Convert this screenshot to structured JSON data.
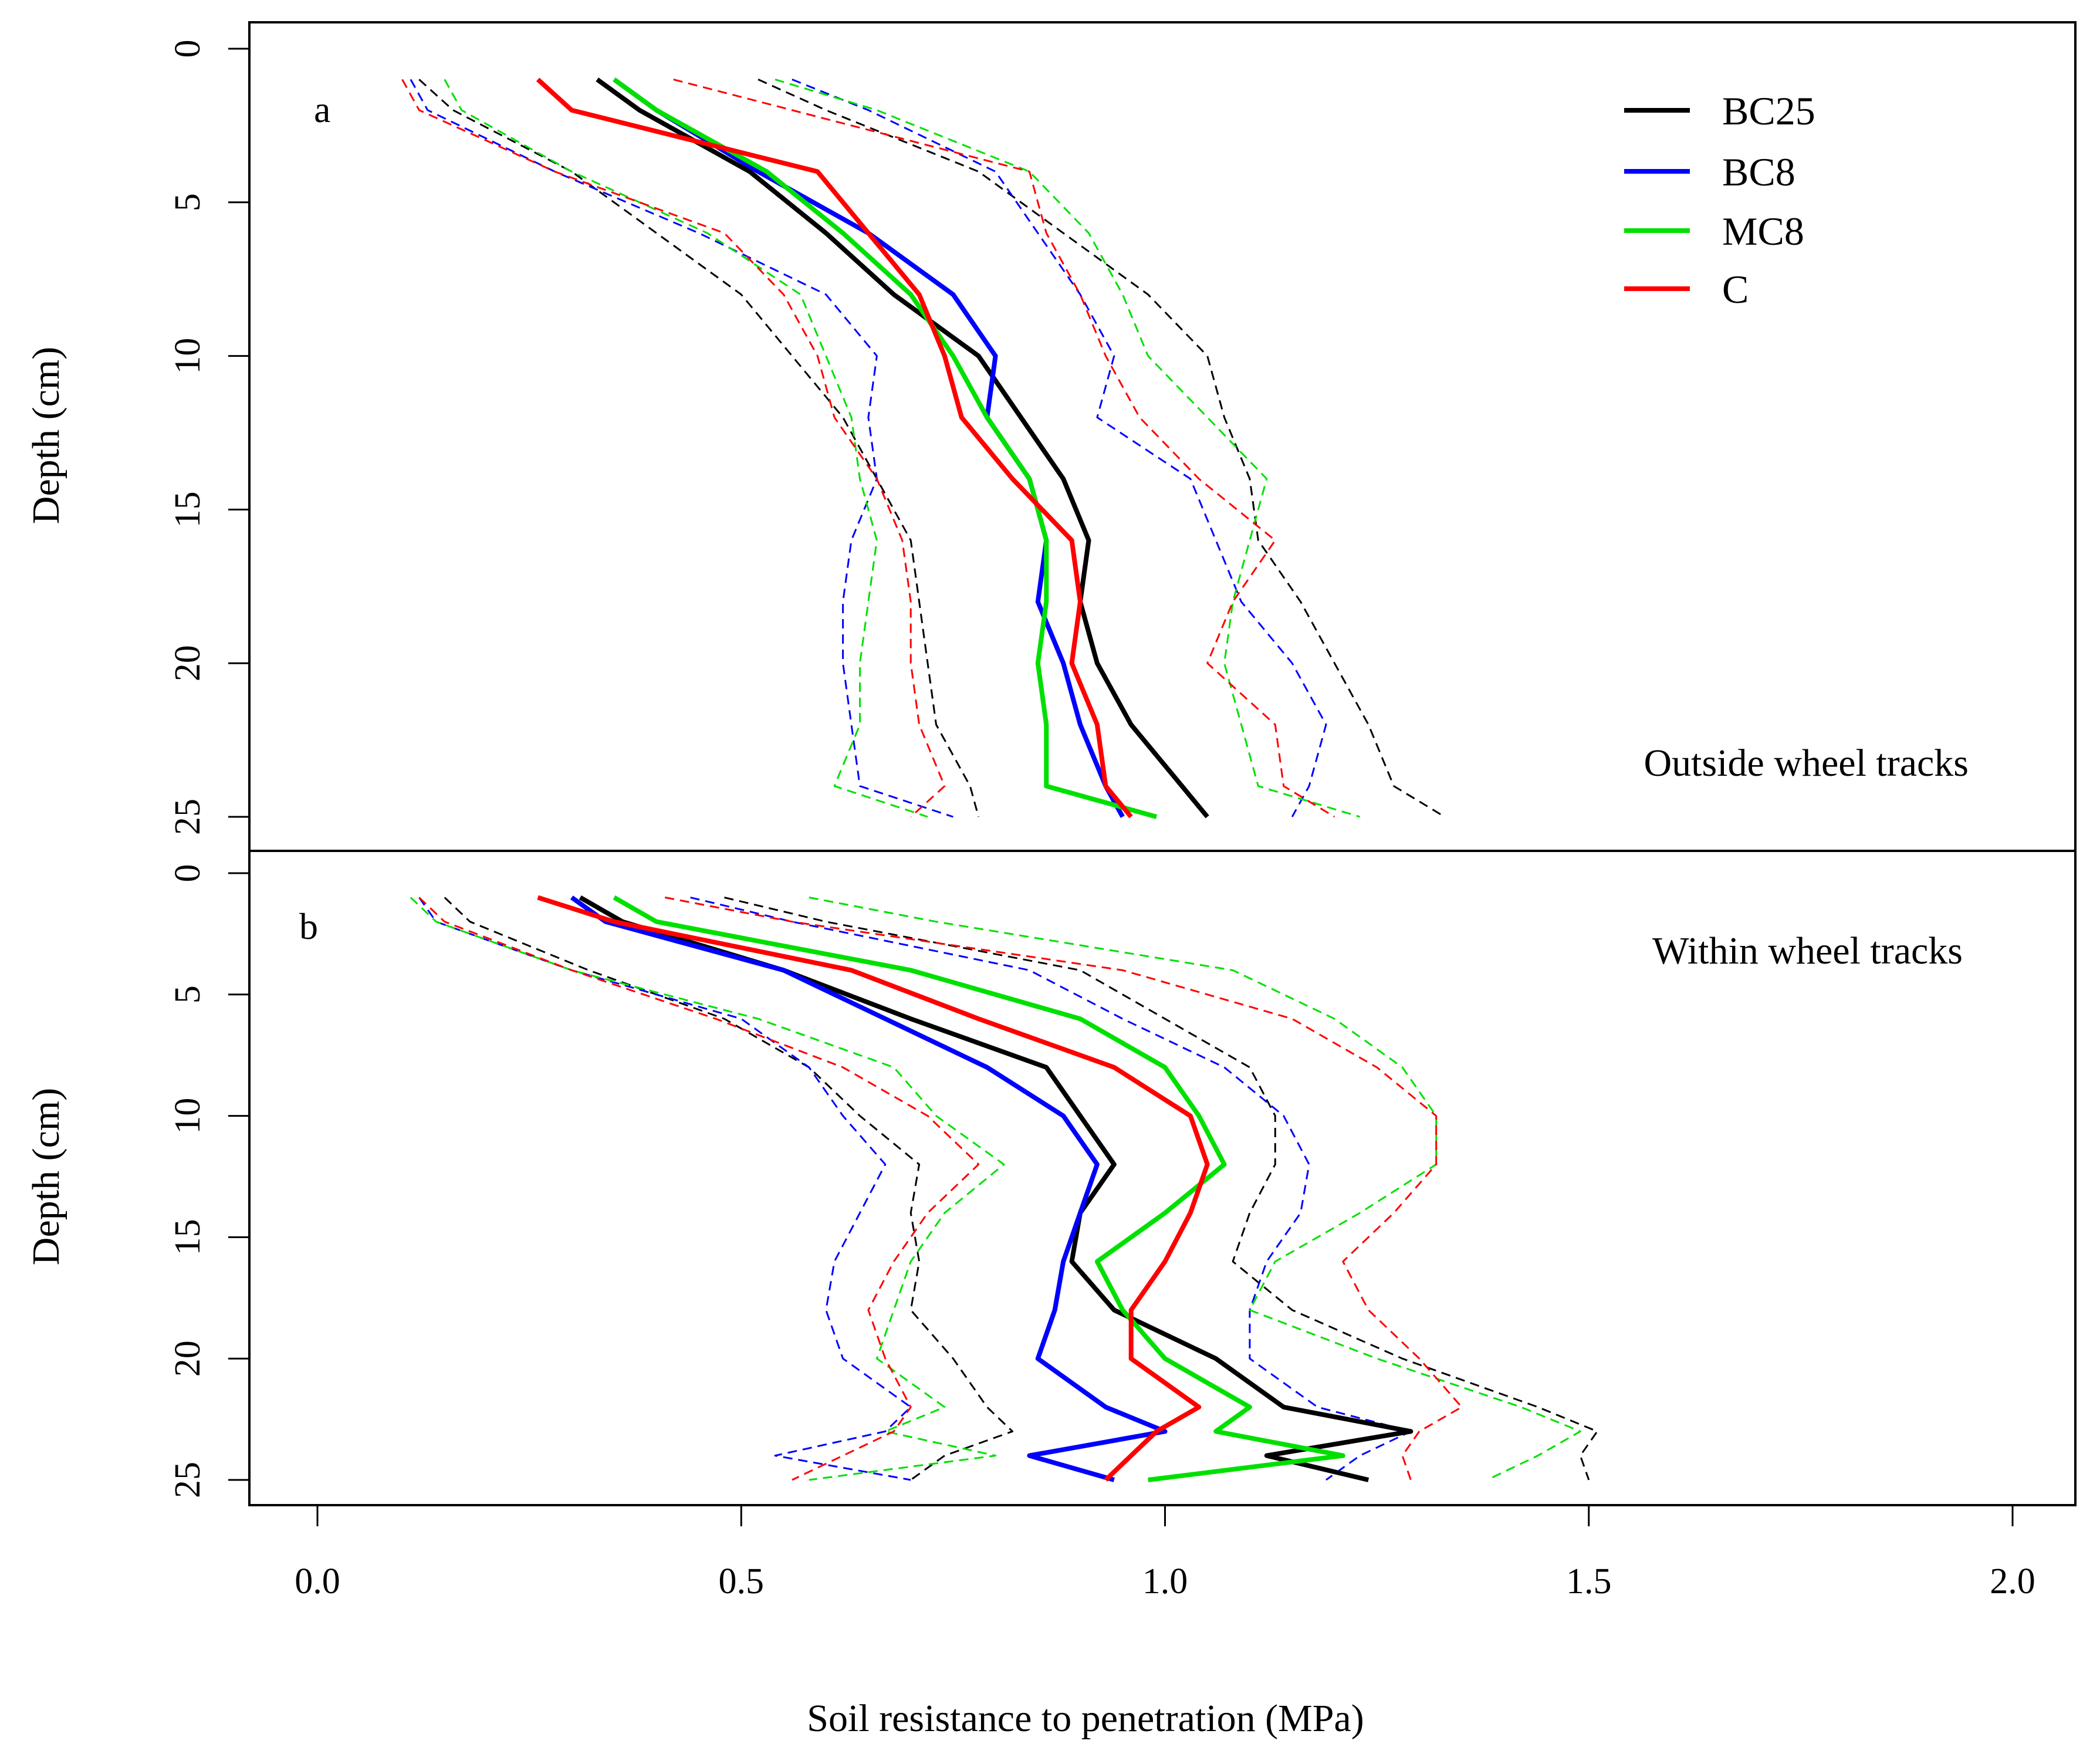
{
  "chart_data": {
    "type": "line",
    "xlabel": "Soil resistance to penetration (MPa)",
    "ylabel": "Depth (cm)",
    "xlim": [
      -0.08,
      2.08
    ],
    "x_ticks": [
      "0.0",
      "0.5",
      "1.0",
      "1.5",
      "2.0"
    ],
    "y_ticks": [
      "0",
      "5",
      "10",
      "15",
      "20",
      "25"
    ],
    "legend": {
      "position": "top-right",
      "entries": [
        {
          "name": "BC25",
          "color": "#000000"
        },
        {
          "name": "BC8",
          "color": "#0000ff"
        },
        {
          "name": "MC8",
          "color": "#00e000"
        },
        {
          "name": "C",
          "color": "#ff0000"
        }
      ]
    },
    "colors": {
      "BC25": "#000000",
      "BC8": "#0000ff",
      "MC8": "#00e000",
      "C": "#ff0000"
    },
    "panels": [
      {
        "letter": "a",
        "annotation": "Outside wheel tracks",
        "ylim": [
          0,
          26
        ],
        "depth": [
          1,
          2,
          4,
          6,
          8,
          10,
          12,
          14,
          16,
          18,
          20,
          22,
          24,
          25
        ],
        "series": [
          {
            "name": "BC25",
            "style": "solid",
            "values": [
              0.33,
              0.38,
              0.51,
              0.6,
              0.68,
              0.78,
              0.83,
              0.88,
              0.91,
              0.9,
              0.92,
              0.96,
              1.02,
              1.05
            ]
          },
          {
            "name": "BC8",
            "style": "solid",
            "values": [
              0.35,
              0.4,
              0.52,
              0.65,
              0.75,
              0.8,
              0.79,
              0.84,
              0.86,
              0.85,
              0.88,
              0.9,
              0.93,
              0.95
            ]
          },
          {
            "name": "MC8",
            "style": "solid",
            "values": [
              0.35,
              0.4,
              0.53,
              0.62,
              0.7,
              0.75,
              0.79,
              0.84,
              0.86,
              0.86,
              0.85,
              0.86,
              0.86,
              0.99
            ]
          },
          {
            "name": "C",
            "style": "solid",
            "values": [
              0.26,
              0.3,
              0.59,
              0.65,
              0.71,
              0.74,
              0.76,
              0.82,
              0.89,
              0.9,
              0.89,
              0.92,
              0.93,
              0.96
            ]
          },
          {
            "name": "BC25",
            "style": "dashed",
            "values": [
              0.12,
              0.16,
              0.3,
              0.4,
              0.5,
              0.56,
              0.62,
              0.66,
              0.7,
              0.71,
              0.72,
              0.73,
              0.77,
              0.78
            ]
          },
          {
            "name": "BC8",
            "style": "dashed",
            "values": [
              0.11,
              0.13,
              0.28,
              0.45,
              0.6,
              0.66,
              0.65,
              0.66,
              0.63,
              0.62,
              0.62,
              0.63,
              0.64,
              0.75
            ]
          },
          {
            "name": "MC8",
            "style": "dashed",
            "values": [
              0.15,
              0.17,
              0.3,
              0.46,
              0.57,
              0.6,
              0.63,
              0.64,
              0.66,
              0.65,
              0.64,
              0.64,
              0.61,
              0.72
            ]
          },
          {
            "name": "C",
            "style": "dashed",
            "values": [
              0.1,
              0.12,
              0.28,
              0.48,
              0.55,
              0.59,
              0.61,
              0.66,
              0.69,
              0.7,
              0.7,
              0.71,
              0.74,
              0.7
            ]
          },
          {
            "name": "BC25",
            "style": "dashed",
            "values": [
              0.52,
              0.6,
              0.78,
              0.88,
              0.98,
              1.05,
              1.07,
              1.1,
              1.11,
              1.16,
              1.2,
              1.24,
              1.27,
              1.33
            ]
          },
          {
            "name": "BC8",
            "style": "dashed",
            "values": [
              0.56,
              0.65,
              0.8,
              0.85,
              0.9,
              0.94,
              0.92,
              1.03,
              1.06,
              1.09,
              1.15,
              1.19,
              1.17,
              1.15
            ]
          },
          {
            "name": "MC8",
            "style": "dashed",
            "values": [
              0.54,
              0.66,
              0.84,
              0.91,
              0.95,
              0.98,
              1.05,
              1.12,
              1.1,
              1.08,
              1.07,
              1.09,
              1.11,
              1.23
            ]
          },
          {
            "name": "C",
            "style": "dashed",
            "values": [
              0.42,
              0.56,
              0.84,
              0.86,
              0.9,
              0.93,
              0.97,
              1.04,
              1.13,
              1.08,
              1.05,
              1.13,
              1.14,
              1.2
            ]
          }
        ]
      },
      {
        "letter": "b",
        "annotation": "Within wheel tracks",
        "ylim": [
          0,
          26
        ],
        "depth": [
          1,
          2,
          4,
          6,
          8,
          10,
          12,
          14,
          16,
          18,
          20,
          22,
          23,
          24,
          25
        ],
        "series": [
          {
            "name": "BC25",
            "style": "solid",
            "values": [
              0.31,
              0.36,
              0.55,
              0.7,
              0.86,
              0.9,
              0.94,
              0.9,
              0.89,
              0.94,
              1.06,
              1.14,
              1.29,
              1.12,
              1.24
            ]
          },
          {
            "name": "BC8",
            "style": "solid",
            "values": [
              0.3,
              0.34,
              0.55,
              0.67,
              0.79,
              0.88,
              0.92,
              0.9,
              0.88,
              0.87,
              0.85,
              0.93,
              1.0,
              0.84,
              0.94
            ]
          },
          {
            "name": "MC8",
            "style": "solid",
            "values": [
              0.35,
              0.4,
              0.7,
              0.9,
              1.0,
              1.04,
              1.07,
              1.0,
              0.92,
              0.95,
              1.0,
              1.1,
              1.06,
              1.21,
              0.98
            ]
          },
          {
            "name": "C",
            "style": "solid",
            "values": [
              0.26,
              0.35,
              0.63,
              0.78,
              0.94,
              1.03,
              1.05,
              1.03,
              1.0,
              0.96,
              0.96,
              1.04,
              0.99,
              0.96,
              0.93
            ]
          },
          {
            "name": "BC25",
            "style": "dashed",
            "values": [
              0.15,
              0.18,
              0.32,
              0.48,
              0.58,
              0.64,
              0.71,
              0.7,
              0.71,
              0.7,
              0.75,
              0.79,
              0.82,
              0.74,
              0.7
            ]
          },
          {
            "name": "BC8",
            "style": "dashed",
            "values": [
              0.12,
              0.14,
              0.3,
              0.5,
              0.58,
              0.62,
              0.67,
              0.64,
              0.61,
              0.6,
              0.62,
              0.7,
              0.67,
              0.54,
              0.7
            ]
          },
          {
            "name": "MC8",
            "style": "dashed",
            "values": [
              0.11,
              0.14,
              0.3,
              0.52,
              0.68,
              0.73,
              0.81,
              0.74,
              0.7,
              0.68,
              0.66,
              0.74,
              0.67,
              0.8,
              0.58
            ]
          },
          {
            "name": "C",
            "style": "dashed",
            "values": [
              0.12,
              0.15,
              0.3,
              0.47,
              0.62,
              0.72,
              0.78,
              0.72,
              0.68,
              0.65,
              0.67,
              0.7,
              0.68,
              0.62,
              0.56
            ]
          },
          {
            "name": "BC25",
            "style": "dashed",
            "values": [
              0.48,
              0.6,
              0.9,
              1.0,
              1.1,
              1.13,
              1.13,
              1.1,
              1.08,
              1.15,
              1.28,
              1.44,
              1.51,
              1.49,
              1.5
            ]
          },
          {
            "name": "BC8",
            "style": "dashed",
            "values": [
              0.44,
              0.56,
              0.84,
              0.95,
              1.07,
              1.14,
              1.17,
              1.16,
              1.12,
              1.1,
              1.1,
              1.18,
              1.29,
              1.23,
              1.19
            ]
          },
          {
            "name": "MC8",
            "style": "dashed",
            "values": [
              0.58,
              0.73,
              1.08,
              1.2,
              1.28,
              1.32,
              1.32,
              1.23,
              1.13,
              1.1,
              1.25,
              1.42,
              1.49,
              1.44,
              1.38
            ]
          },
          {
            "name": "C",
            "style": "dashed",
            "values": [
              0.41,
              0.56,
              0.95,
              1.15,
              1.25,
              1.32,
              1.32,
              1.27,
              1.21,
              1.24,
              1.3,
              1.35,
              1.3,
              1.28,
              1.29
            ]
          }
        ]
      }
    ]
  }
}
